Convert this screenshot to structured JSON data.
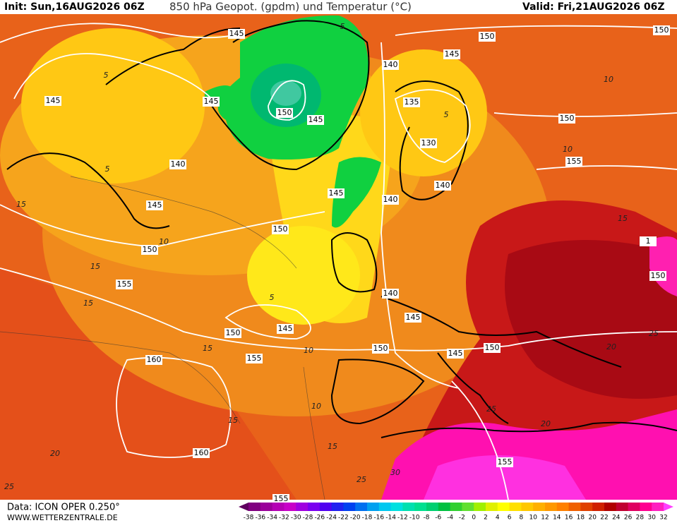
{
  "header": {
    "init": "Init: Sun,16AUG2026 06Z",
    "title": "850 hPa Geopot. (gpdm) und Temperatur (°C)",
    "valid": "Valid: Fri,21AUG2026 06Z"
  },
  "map": {
    "geopotential_labels": [
      145,
      150,
      150,
      145,
      140,
      145,
      145,
      150,
      145,
      135,
      150,
      130,
      140,
      155,
      145,
      140,
      145,
      140,
      150,
      150,
      155,
      140,
      150,
      145,
      150,
      145,
      150,
      145,
      150,
      160,
      155,
      160,
      155,
      155,
      1
    ],
    "temperature_labels": [
      5,
      5,
      5,
      10,
      10,
      5,
      15,
      10,
      15,
      15,
      5,
      10,
      15,
      20,
      25,
      20,
      25,
      15,
      20,
      25,
      30,
      25,
      10,
      15,
      15
    ]
  },
  "legend": {
    "colors": [
      "#600060",
      "#800080",
      "#9a009a",
      "#b400b4",
      "#c800c8",
      "#a000e0",
      "#7a00f0",
      "#5000f0",
      "#2020f0",
      "#0040f0",
      "#0070f0",
      "#00a0f0",
      "#00c8f0",
      "#00e0e0",
      "#00e0b0",
      "#00e090",
      "#00d070",
      "#00c040",
      "#30d030",
      "#60e030",
      "#a0f000",
      "#e0f000",
      "#ffff00",
      "#ffe000",
      "#ffc800",
      "#ffb000",
      "#ff9800",
      "#ff8000",
      "#f06000",
      "#e04000",
      "#d02000",
      "#b00000",
      "#c00030",
      "#e00060",
      "#ff0090",
      "#ff20c0",
      "#ff40ff"
    ],
    "labels": [
      -38,
      -36,
      -34,
      -32,
      -30,
      -28,
      -26,
      -24,
      -22,
      -20,
      -18,
      -16,
      -14,
      -12,
      -10,
      -8,
      -6,
      -4,
      -2,
      0,
      2,
      4,
      6,
      8,
      10,
      12,
      14,
      16,
      18,
      20,
      22,
      24,
      26,
      28,
      30,
      32
    ]
  },
  "footer": {
    "data": "Data: ICON OPER 0.250°",
    "site": "WWW.WETTERZENTRALE.DE"
  }
}
